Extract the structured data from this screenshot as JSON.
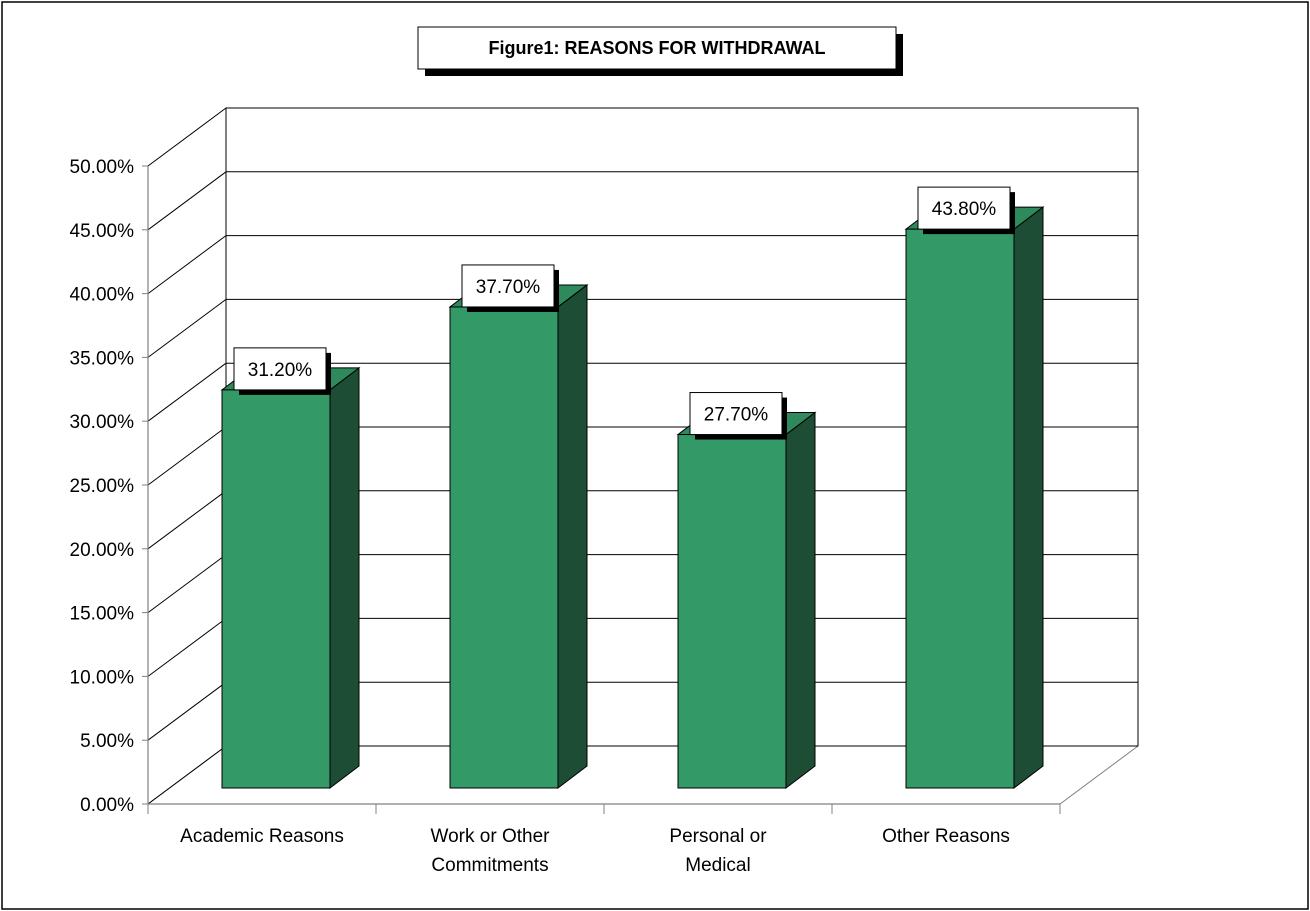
{
  "chart_data": {
    "type": "bar",
    "title": "Figure1: REASONS FOR WITHDRAWAL",
    "categories": [
      [
        "Academic Reasons"
      ],
      [
        "Work or Other",
        "Commitments"
      ],
      [
        "Personal or",
        "Medical"
      ],
      [
        "Other Reasons"
      ]
    ],
    "values": [
      31.2,
      37.7,
      27.7,
      43.8
    ],
    "data_labels": [
      "31.20%",
      "37.70%",
      "27.70%",
      "43.80%"
    ],
    "y_ticks": [
      "0.00%",
      "5.00%",
      "10.00%",
      "15.00%",
      "20.00%",
      "25.00%",
      "30.00%",
      "35.00%",
      "40.00%",
      "45.00%",
      "50.00%"
    ],
    "ylim": [
      0,
      50
    ],
    "xlabel": "",
    "ylabel": "",
    "grid": true,
    "legend": "none",
    "colors": {
      "bar_front": "#339966",
      "bar_side": "#1e4d36",
      "bar_top": "#2e8a5c",
      "grid": "#000000",
      "label_box": "#ffffff",
      "label_shadow": "#000000"
    }
  }
}
